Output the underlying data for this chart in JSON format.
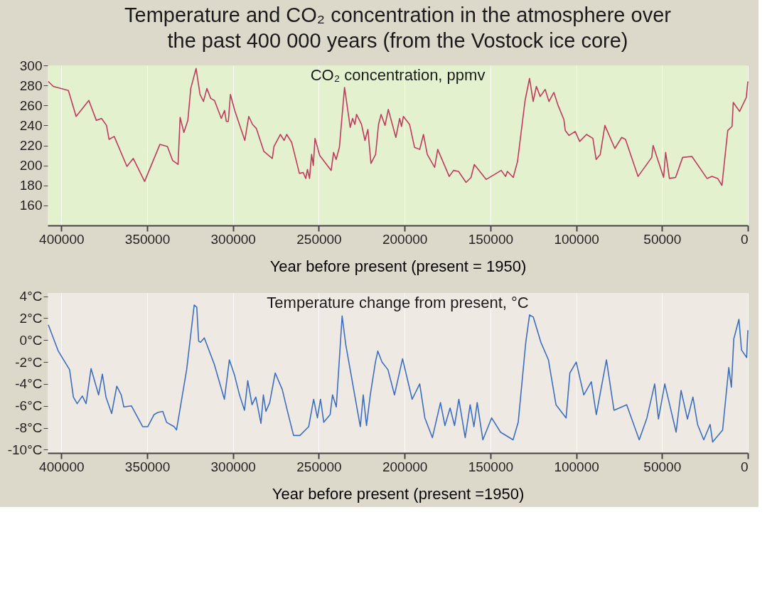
{
  "chart_data": [
    {
      "type": "line",
      "title": "Temperature and CO₂ concentration in the atmosphere over the past 400 000 years (from the Vostock ice core)",
      "xlabel": "Year before present (present = 1950)",
      "annotations": [
        "CO₂ concentration, ppmv"
      ],
      "xlim": [
        408000,
        0
      ],
      "xticks": [
        400000,
        350000,
        300000,
        250000,
        200000,
        150000,
        100000,
        50000,
        0
      ],
      "ylim": [
        140,
        300
      ],
      "yticks": [
        160,
        180,
        200,
        220,
        240,
        260,
        280,
        300
      ],
      "grid": "x",
      "line_style": "solid",
      "marker": "none",
      "x": [
        407700,
        404700,
        395900,
        391400,
        384000,
        379600,
        376600,
        373700,
        372200,
        369200,
        361800,
        358100,
        351500,
        342600,
        338200,
        335200,
        332000,
        330800,
        328600,
        326300,
        324600,
        321500,
        319200,
        317200,
        315200,
        313000,
        310800,
        306800,
        304900,
        303900,
        302700,
        301500,
        299000,
        293100,
        290800,
        288600,
        286400,
        282000,
        277100,
        276100,
        272400,
        270200,
        268700,
        265800,
        261300,
        259100,
        257600,
        256600,
        255400,
        254200,
        253200,
        252200,
        249500,
        242800,
        241400,
        239900,
        238000,
        235000,
        231700,
        230300,
        229000,
        228000,
        225100,
        223100,
        221400,
        219600,
        216900,
        215200,
        213700,
        211400,
        209500,
        205100,
        202900,
        201800,
        200700,
        197100,
        194200,
        191200,
        189000,
        186800,
        182500,
        180700,
        174000,
        171500,
        168600,
        164200,
        161300,
        159400,
        152500,
        143700,
        141200,
        140100,
        136700,
        134200,
        129800,
        127200,
        125100,
        123200,
        121000,
        118100,
        115900,
        113000,
        110800,
        107200,
        106400,
        104200,
        100600,
        98000,
        94000,
        90300,
        88400,
        86000,
        83300,
        77500,
        73500,
        71300,
        64000,
        56000,
        55200,
        49100,
        47900,
        45700,
        42100,
        38000,
        32600,
        23800,
        20900,
        17600,
        15100,
        11700,
        9200,
        8500,
        4800,
        900,
        0
      ],
      "series": [
        {
          "color": "#c23a5c",
          "values": [
            284,
            279,
            275,
            249,
            265,
            245,
            247,
            240,
            226,
            229,
            199,
            207,
            184,
            221,
            219,
            205,
            201,
            248,
            233,
            245,
            277,
            297,
            271,
            264,
            277,
            267,
            265,
            247,
            255,
            244,
            244,
            271,
            255,
            225,
            249,
            241,
            237,
            214,
            207,
            219,
            231,
            225,
            231,
            223,
            192,
            193,
            187,
            196,
            187,
            211,
            200,
            227,
            210,
            195,
            213,
            206,
            218,
            278,
            238,
            247,
            241,
            251,
            241,
            225,
            236,
            202,
            211,
            241,
            251,
            240,
            256,
            228,
            247,
            239,
            249,
            241,
            218,
            216,
            231,
            211,
            198,
            216,
            189,
            195,
            194,
            183,
            188,
            201,
            186,
            195,
            189,
            194,
            188,
            204,
            265,
            287,
            264,
            279,
            269,
            276,
            264,
            273,
            261,
            246,
            235,
            230,
            234,
            224,
            231,
            227,
            206,
            211,
            240,
            217,
            228,
            226,
            189,
            208,
            220,
            188,
            213,
            187,
            188,
            208,
            209,
            187,
            189,
            187,
            180,
            235,
            239,
            263,
            254,
            268,
            284
          ]
        }
      ]
    },
    {
      "type": "line",
      "xlabel": "Year before present (present =1950)",
      "annotations": [
        "Temperature change from present, °C"
      ],
      "xlim": [
        408000,
        0
      ],
      "xticks": [
        400000,
        350000,
        300000,
        250000,
        200000,
        150000,
        100000,
        50000,
        0
      ],
      "ylim": [
        -10.3,
        4.3
      ],
      "yticks": [
        {
          "value": 4,
          "label": "4°C"
        },
        {
          "value": 2,
          "label": "2°C"
        },
        {
          "value": 0,
          "label": "0°C"
        },
        {
          "value": -2,
          "label": "-2°C"
        },
        {
          "value": -4,
          "label": "-4°C"
        },
        {
          "value": -6,
          "label": "-6°C"
        },
        {
          "value": -8,
          "label": "-8°C"
        },
        {
          "value": -10,
          "label": "-10°C"
        }
      ],
      "grid": "x",
      "line_style": "solid",
      "marker": "none",
      "x": [
        407600,
        401800,
        395200,
        393000,
        390800,
        387800,
        385600,
        382700,
        378300,
        376100,
        374000,
        370700,
        367700,
        365100,
        363600,
        359200,
        352600,
        349700,
        346000,
        343800,
        340900,
        338700,
        334300,
        332900,
        327000,
        322600,
        321100,
        320000,
        318900,
        316700,
        310900,
        305000,
        302100,
        299100,
        296200,
        293300,
        291400,
        288900,
        286700,
        283700,
        282300,
        280800,
        278600,
        275400,
        271300,
        268400,
        264700,
        261000,
        255900,
        253000,
        250800,
        249000,
        247100,
        243400,
        242000,
        239800,
        236400,
        234300,
        227300,
        225800,
        224100,
        222200,
        220000,
        217000,
        215600,
        213200,
        209700,
        205900,
        201200,
        195600,
        191200,
        188200,
        183800,
        179100,
        176500,
        173500,
        170900,
        168400,
        164700,
        161800,
        159600,
        157700,
        154400,
        149300,
        144100,
        136800,
        133800,
        129400,
        127200,
        125000,
        120600,
        116200,
        111800,
        105900,
        103700,
        100000,
        95600,
        91200,
        88300,
        82400,
        78000,
        70600,
        63300,
        58800,
        54300,
        52100,
        48400,
        41800,
        38900,
        35200,
        32000,
        29300,
        25700,
        22000,
        20500,
        14700,
        11100,
        9600,
        8200,
        5200,
        3700,
        700,
        0
      ],
      "series": [
        {
          "color": "#3b6fc2",
          "values": [
            1.4,
            -1.0,
            -2.7,
            -5.2,
            -5.8,
            -5.1,
            -5.8,
            -2.6,
            -5.0,
            -3.1,
            -5.2,
            -6.7,
            -4.2,
            -5.0,
            -6.1,
            -6.0,
            -7.9,
            -7.9,
            -6.8,
            -6.6,
            -6.5,
            -7.5,
            -7.9,
            -8.2,
            -2.7,
            3.2,
            3.0,
            -0.1,
            -0.2,
            0.2,
            -2.2,
            -5.4,
            -1.8,
            -3.2,
            -5.0,
            -6.4,
            -3.7,
            -5.9,
            -5.2,
            -7.6,
            -5.0,
            -6.5,
            -5.7,
            -3.0,
            -4.5,
            -6.4,
            -8.7,
            -8.7,
            -7.9,
            -5.4,
            -7.1,
            -5.4,
            -7.5,
            -6.8,
            -5.0,
            -6.1,
            2.2,
            -0.4,
            -6.6,
            -7.9,
            -5.0,
            -7.8,
            -5.0,
            -2.0,
            -1.0,
            -2.0,
            -2.7,
            -5.0,
            -1.7,
            -5.4,
            -4.0,
            -7.1,
            -8.9,
            -5.7,
            -7.8,
            -6.2,
            -7.8,
            -5.4,
            -8.9,
            -5.9,
            -7.9,
            -5.7,
            -9.1,
            -7.1,
            -8.4,
            -9.1,
            -7.5,
            -0.2,
            2.3,
            2.1,
            -0.2,
            -1.8,
            -5.9,
            -7.1,
            -3.0,
            -2.0,
            -5.0,
            -3.8,
            -6.8,
            -1.8,
            -6.4,
            -5.9,
            -9.1,
            -7.1,
            -4.0,
            -7.2,
            -4.0,
            -8.4,
            -4.6,
            -7.2,
            -5.2,
            -7.7,
            -9.1,
            -7.7,
            -9.3,
            -8.2,
            -2.5,
            -4.3,
            0.1,
            1.9,
            -0.9,
            -1.6,
            0.9
          ]
        }
      ]
    }
  ]
}
